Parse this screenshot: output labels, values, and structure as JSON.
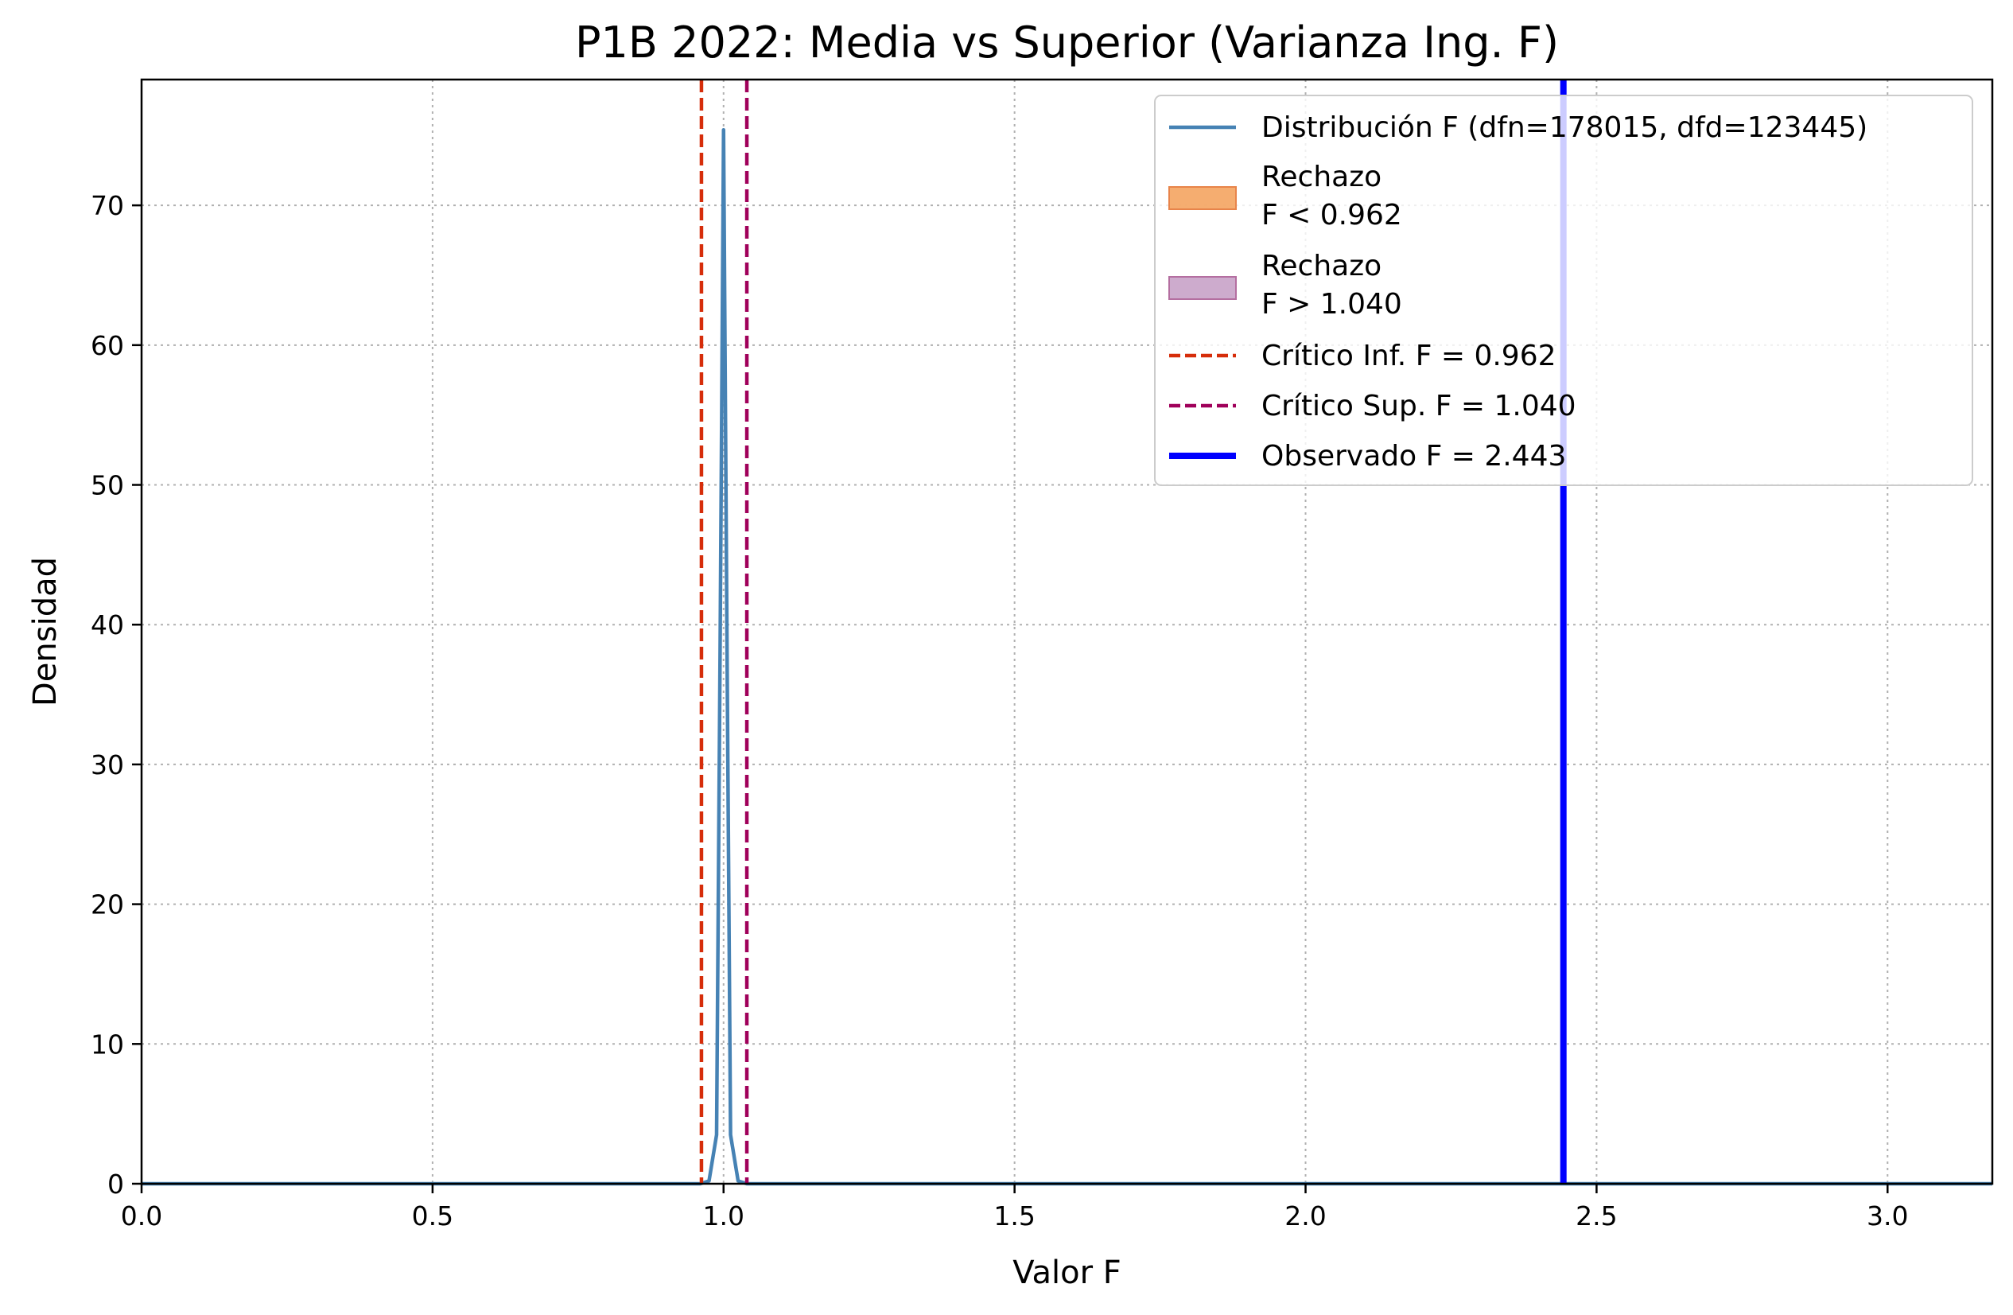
{
  "chart_data": {
    "type": "line",
    "title": "P1B 2022: Media vs Superior (Varianza Ing. F)",
    "xlabel": "Valor F",
    "ylabel": "Densidad",
    "xlim": [
      0,
      3.18
    ],
    "ylim": [
      0,
      79
    ],
    "xticks": [
      0.0,
      0.5,
      1.0,
      1.5,
      2.0,
      2.5,
      3.0
    ],
    "xtick_labels": [
      "0.0",
      "0.5",
      "1.0",
      "1.5",
      "2.0",
      "2.5",
      "3.0"
    ],
    "yticks": [
      0,
      10,
      20,
      30,
      40,
      50,
      60,
      70
    ],
    "ytick_labels": [
      "0",
      "10",
      "20",
      "30",
      "40",
      "50",
      "60",
      "70"
    ],
    "grid": true,
    "legend_position": "top-right",
    "series": [
      {
        "name": "Distribución F (dfn=178015, dfd=123445)",
        "color": "#4682b4",
        "x": [
          0.0,
          0.96,
          0.975,
          0.988,
          0.994,
          1.0,
          1.006,
          1.012,
          1.025,
          1.04,
          3.18
        ],
        "y": [
          0,
          0,
          0.2,
          3.5,
          38,
          75.4,
          38,
          3.5,
          0.2,
          0,
          0
        ]
      }
    ],
    "regions": [
      {
        "label": "Rechazo\nF < 0.962",
        "label_lines": [
          "Rechazo",
          "F < 0.962"
        ],
        "color": "#f4a460",
        "x_min": 0.0,
        "x_max": 0.962
      },
      {
        "label": "Rechazo\nF > 1.040",
        "label_lines": [
          "Rechazo",
          "F > 1.040"
        ],
        "color": "#c8a2c8",
        "x_min": 1.04,
        "x_max": 3.18
      }
    ],
    "vlines": [
      {
        "label": "Crítico Inf. F = 0.962",
        "x": 0.962,
        "color": "#d62d0a",
        "style": "dashed"
      },
      {
        "label": "Crítico Sup. F = 1.040",
        "x": 1.04,
        "color": "#a0005a",
        "style": "dashed"
      },
      {
        "label": "Observado F = 2.443",
        "x": 2.443,
        "color": "#0000ff",
        "style": "solid"
      }
    ]
  }
}
